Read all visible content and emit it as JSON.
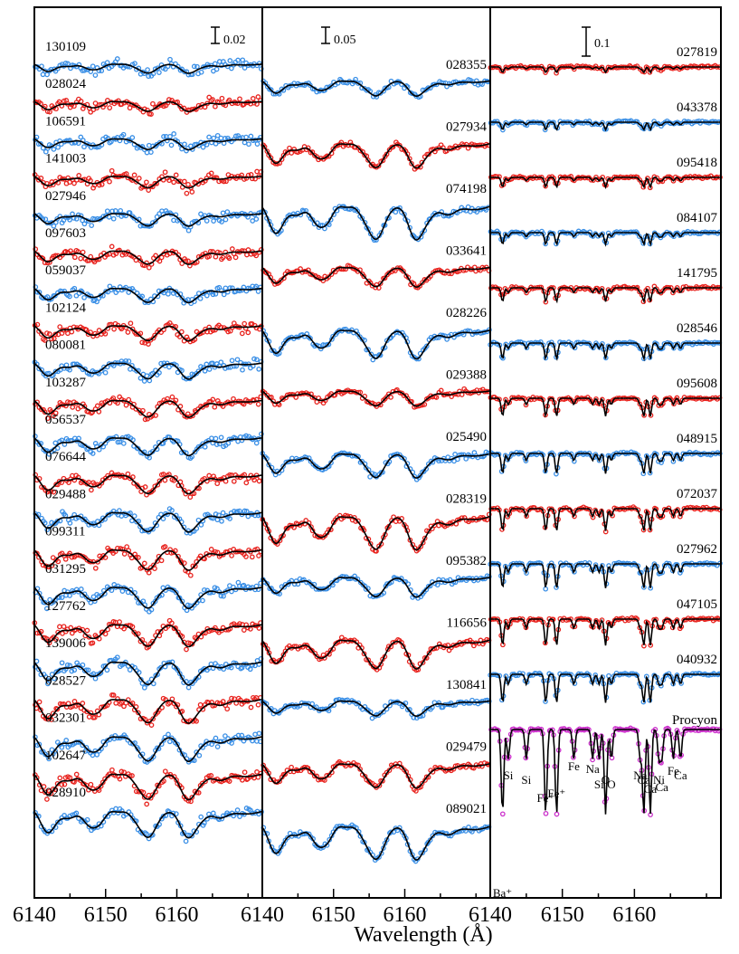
{
  "chart_data": {
    "type": "line",
    "xlabel": "Wavelength (Å)",
    "x_unit": "Å",
    "xlim": [
      6140,
      6172
    ],
    "x_ticks": [
      6140,
      6150,
      6160
    ],
    "x_tick_labels": [
      "6140",
      "6150",
      "6160",
      "6140",
      "6150",
      "6160",
      "6140",
      "6150",
      "6160"
    ],
    "colors": {
      "red": "#e8231e",
      "blue": "#3a8fe6",
      "magenta": "#cc33cc",
      "model": "#000000"
    },
    "panels": [
      {
        "scale_bar": "0.02",
        "spectra": [
          {
            "name": "130109",
            "color": "blue"
          },
          {
            "name": "028024",
            "color": "red"
          },
          {
            "name": "106591",
            "color": "blue"
          },
          {
            "name": "141003",
            "color": "red"
          },
          {
            "name": "027946",
            "color": "blue"
          },
          {
            "name": "097603",
            "color": "red"
          },
          {
            "name": "059037",
            "color": "blue"
          },
          {
            "name": "102124",
            "color": "red"
          },
          {
            "name": "080081",
            "color": "blue"
          },
          {
            "name": "103287",
            "color": "red"
          },
          {
            "name": "056537",
            "color": "blue"
          },
          {
            "name": "076644",
            "color": "red"
          },
          {
            "name": "029488",
            "color": "blue"
          },
          {
            "name": "099311",
            "color": "red"
          },
          {
            "name": "031295",
            "color": "blue"
          },
          {
            "name": "127762",
            "color": "red"
          },
          {
            "name": "139006",
            "color": "blue"
          },
          {
            "name": "028527",
            "color": "red"
          },
          {
            "name": "032301",
            "color": "blue"
          },
          {
            "name": "102647",
            "color": "red"
          },
          {
            "name": "028910",
            "color": "blue"
          }
        ]
      },
      {
        "scale_bar": "0.05",
        "spectra": [
          {
            "name": "028355",
            "color": "blue"
          },
          {
            "name": "027934",
            "color": "red"
          },
          {
            "name": "074198",
            "color": "blue"
          },
          {
            "name": "033641",
            "color": "red"
          },
          {
            "name": "028226",
            "color": "blue"
          },
          {
            "name": "029388",
            "color": "red"
          },
          {
            "name": "025490",
            "color": "blue"
          },
          {
            "name": "028319",
            "color": "red"
          },
          {
            "name": "095382",
            "color": "blue"
          },
          {
            "name": "116656",
            "color": "red"
          },
          {
            "name": "130841",
            "color": "blue"
          },
          {
            "name": "029479",
            "color": "red"
          },
          {
            "name": "089021",
            "color": "blue"
          }
        ]
      },
      {
        "scale_bar": "0.1",
        "spectra": [
          {
            "name": "027819",
            "color": "red"
          },
          {
            "name": "043378",
            "color": "blue"
          },
          {
            "name": "095418",
            "color": "red"
          },
          {
            "name": "084107",
            "color": "blue"
          },
          {
            "name": "141795",
            "color": "red"
          },
          {
            "name": "028546",
            "color": "blue"
          },
          {
            "name": "095608",
            "color": "red"
          },
          {
            "name": "048915",
            "color": "blue"
          },
          {
            "name": "072037",
            "color": "red"
          },
          {
            "name": "027962",
            "color": "blue"
          },
          {
            "name": "047105",
            "color": "red"
          },
          {
            "name": "040932",
            "color": "blue"
          },
          {
            "name": "Procyon",
            "color": "magenta"
          }
        ],
        "line_ids": [
          {
            "label": "Ba⁺",
            "wavelength": 6141.7
          },
          {
            "label": "Si",
            "wavelength": 6142.5
          },
          {
            "label": "Si",
            "wavelength": 6145.0
          },
          {
            "label": "Fe⁺",
            "wavelength": 6147.7
          },
          {
            "label": "Fe⁺",
            "wavelength": 6149.2
          },
          {
            "label": "Fe",
            "wavelength": 6151.6
          },
          {
            "label": "Na",
            "wavelength": 6154.2
          },
          {
            "label": "Si",
            "wavelength": 6155.1
          },
          {
            "label": "O",
            "wavelength": 6156.0
          },
          {
            "label": "O",
            "wavelength": 6156.8
          },
          {
            "label": "Na",
            "wavelength": 6160.8
          },
          {
            "label": "Ca",
            "wavelength": 6161.3
          },
          {
            "label": "Ca",
            "wavelength": 6162.2
          },
          {
            "label": "Ni",
            "wavelength": 6163.4
          },
          {
            "label": "Ca",
            "wavelength": 6163.8
          },
          {
            "label": "Fe",
            "wavelength": 6165.4
          },
          {
            "label": "Ca",
            "wavelength": 6166.4
          }
        ]
      }
    ]
  }
}
